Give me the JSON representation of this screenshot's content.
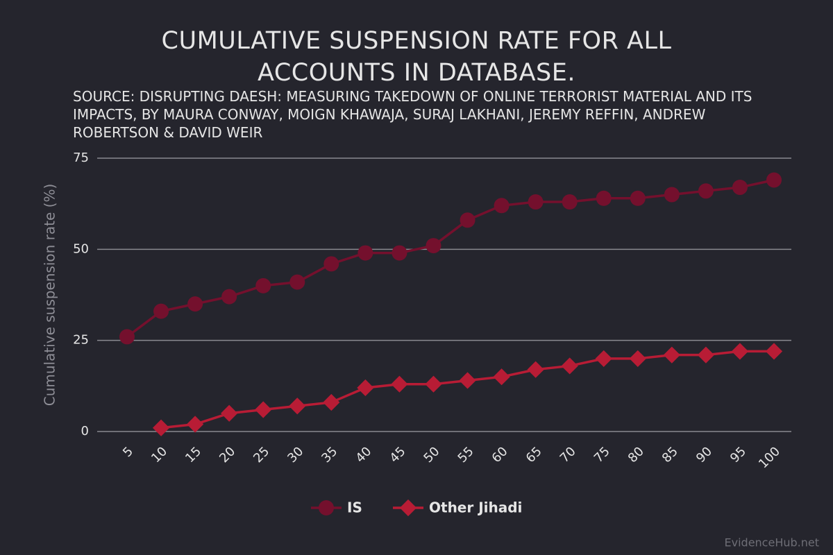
{
  "chart_data": {
    "type": "line",
    "title": "CUMULATIVE SUSPENSION RATE FOR ALL ACCOUNTS IN DATABASE.",
    "subtitle": "SOURCE: DISRUPTING DAESH: MEASURING TAKEDOWN OF ONLINE TERRORIST MATERIAL AND ITS IMPACTS, BY MAURA CONWAY, MOIGN KHAWAJA, SURAJ LAKHANI, JEREMY REFFIN, ANDREW ROBERTSON & DAVID WEIR",
    "y_label": "Cumulative suspension rate (%)",
    "categories": [
      "5",
      "10",
      "15",
      "20",
      "25",
      "30",
      "35",
      "40",
      "45",
      "50",
      "55",
      "60",
      "65",
      "70",
      "75",
      "80",
      "85",
      "90",
      "95",
      "100"
    ],
    "series": [
      {
        "name": "IS",
        "color": "#74102d",
        "marker": "circle",
        "values": [
          26,
          33,
          35,
          37,
          40,
          41,
          46,
          49,
          49,
          51,
          58,
          62,
          63,
          63,
          64,
          64,
          65,
          66,
          67,
          69
        ]
      },
      {
        "name": "Other Jihadi",
        "color": "#b81c35",
        "marker": "diamond",
        "values": [
          null,
          1,
          2,
          5,
          6,
          7,
          8,
          12,
          13,
          13,
          14,
          15,
          17,
          18,
          20,
          20,
          21,
          21,
          22,
          22
        ]
      }
    ],
    "ylim": [
      0,
      75
    ],
    "yticks": [
      0,
      25,
      50,
      75
    ],
    "grid": true,
    "legend": "bottom",
    "watermark": "EvidenceHub.net"
  }
}
